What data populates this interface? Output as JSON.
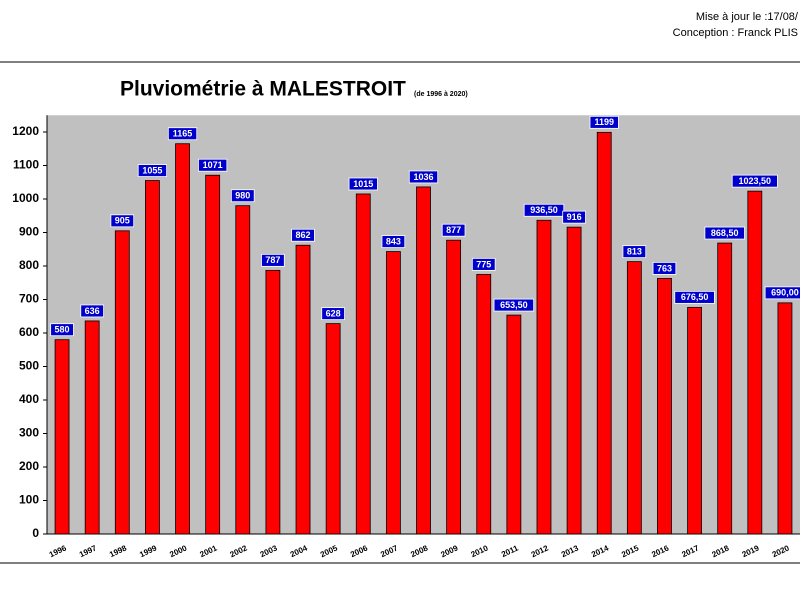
{
  "header": {
    "updated": "Mise à jour le :17/08/",
    "credit": "Conception : Franck PLIS"
  },
  "chart_data": {
    "type": "bar",
    "title": "Pluviométrie à MALESTROIT",
    "subtitle": "(de 1996 à 2020)",
    "categories": [
      "1996",
      "1997",
      "1998",
      "1999",
      "2000",
      "2001",
      "2002",
      "2003",
      "2004",
      "2005",
      "2006",
      "2007",
      "2008",
      "2009",
      "2010",
      "2011",
      "2012",
      "2013",
      "2014",
      "2015",
      "2016",
      "2017",
      "2018",
      "2019",
      "2020"
    ],
    "values": [
      580,
      636,
      905,
      1055,
      1165,
      1071,
      980,
      787,
      862,
      628,
      1015,
      843,
      1036,
      877,
      775,
      653.5,
      936.5,
      916,
      1199,
      813,
      763,
      676.5,
      868.5,
      1023.5,
      690
    ],
    "value_labels": [
      "580",
      "636",
      "905",
      "1055",
      "1165",
      "1071",
      "980",
      "787",
      "862",
      "628",
      "1015",
      "843",
      "1036",
      "877",
      "775",
      "653,50",
      "936,50",
      "916",
      "1199",
      "813",
      "763",
      "676,50",
      "868,50",
      "1023,50",
      "690,00"
    ],
    "color": "#ff0000",
    "ylim": [
      0,
      1250
    ],
    "yticks": [
      0,
      100,
      200,
      300,
      400,
      500,
      600,
      700,
      800,
      900,
      1000,
      1100,
      1200
    ]
  }
}
